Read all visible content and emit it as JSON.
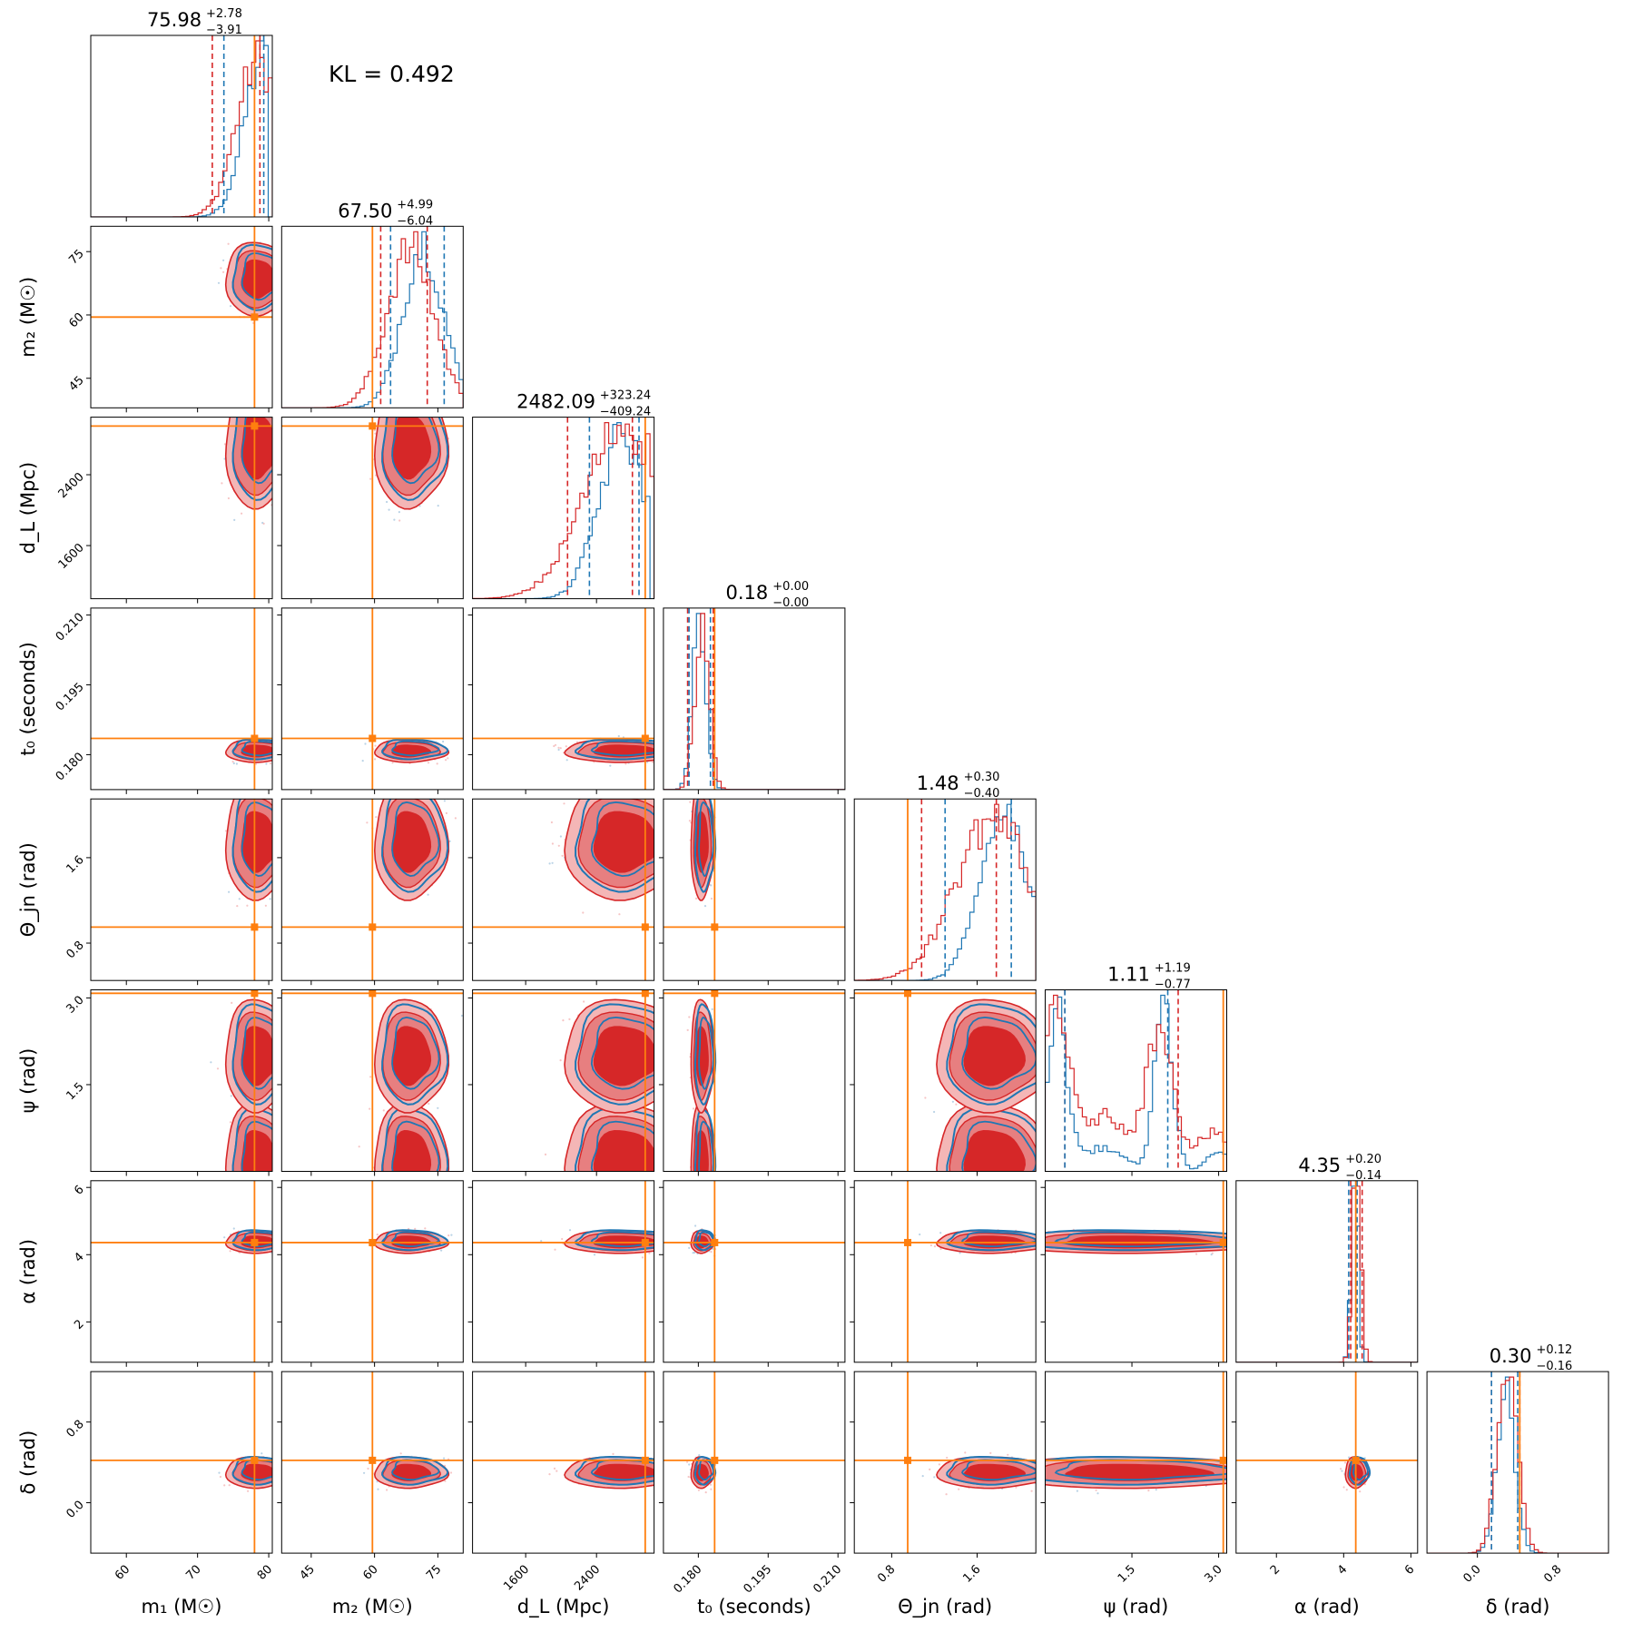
{
  "kl_label": "KL = 0.492",
  "colors": {
    "red": "#d62728",
    "red_light": "#f4b6b6",
    "red_mid": "#e77f80",
    "blue": "#1f77b4",
    "orange": "#ff7f0e"
  },
  "chart_data": {
    "type": "corner",
    "kl": 0.492,
    "series": [
      {
        "name": "",
        "color": "red",
        "style": "filled contours + step histogram"
      },
      {
        "name": "",
        "color": "blue",
        "style": "contour lines + step histogram"
      }
    ],
    "params": [
      {
        "key": "m1",
        "label": "m₁ (M☉)",
        "short": "m₁",
        "unit": "(M☉)",
        "range": [
          55,
          80.5
        ],
        "ticks": [
          60,
          70,
          80
        ],
        "tick_labels": [
          "60",
          "70",
          "80"
        ],
        "median": 75.98,
        "plus": "+2.78",
        "minus": "−3.91",
        "title_value": "75.98",
        "truth": 78.0,
        "red_q": [
          72.07,
          78.76
        ],
        "blue_q": [
          73.7,
          79.3
        ],
        "red_mode": 78.5,
        "red_sd": 3.0,
        "blue_mode": 79.2,
        "blue_sd": 2.6,
        "blue_cut": 80
      },
      {
        "key": "m2",
        "label": "m₂ (M☉)",
        "short": "m₂",
        "unit": "(M☉)",
        "range": [
          38,
          81
        ],
        "ticks": [
          45,
          60,
          75
        ],
        "tick_labels": [
          "45",
          "60",
          "75"
        ],
        "median": 67.5,
        "plus": "+4.99",
        "minus": "−6.04",
        "title_value": "67.50",
        "truth": 59.5,
        "red_q": [
          61.46,
          72.49
        ],
        "blue_q": [
          63.8,
          76.5
        ],
        "red_mode": 68.5,
        "red_sd": 5.6,
        "blue_mode": 71.5,
        "blue_sd": 4.8
      },
      {
        "key": "dL",
        "label": "d_L (Mpc)",
        "short": "d",
        "unit": "(Mpc)",
        "range": [
          1000,
          3050
        ],
        "ticks": [
          1600,
          2400
        ],
        "tick_labels": [
          "1600",
          "2400"
        ],
        "median": 2482.09,
        "plus": "+323.24",
        "minus": "−409.24",
        "title_value": "2482.09",
        "truth": 2950,
        "red_q": [
          2072.85,
          2805.33
        ],
        "blue_q": [
          2320,
          2880
        ],
        "red_mode": 2720,
        "red_sd": 450,
        "blue_mode": 2700,
        "blue_sd": 270,
        "blue_cut": 3010
      },
      {
        "key": "t0",
        "label": "t₀ (seconds)",
        "short": "t₀",
        "unit": "(seconds)",
        "range": [
          0.1725,
          0.2115
        ],
        "ticks": [
          0.18,
          0.195,
          0.21
        ],
        "tick_labels": [
          "0.180",
          "0.195",
          "0.210"
        ],
        "median": 0.18,
        "plus": "+0.00",
        "minus": "−0.00",
        "title_value": "0.18",
        "truth": 0.1835,
        "red_q": [
          0.1777,
          0.1832
        ],
        "blue_q": [
          0.178,
          0.1826
        ],
        "red_mode": 0.1808,
        "red_sd": 0.0015,
        "blue_mode": 0.1802,
        "blue_sd": 0.0014
      },
      {
        "key": "theta_jn",
        "label": "Θ_jn (rad)",
        "short": "Θ",
        "unit": "(rad)",
        "range": [
          0.45,
          2.15
        ],
        "ticks": [
          0.8,
          1.6
        ],
        "tick_labels": [
          "0.8",
          "1.6"
        ],
        "median": 1.48,
        "plus": "+0.30",
        "minus": "−0.40",
        "title_value": "1.48",
        "truth": 0.95,
        "red_q": [
          1.08,
          1.78
        ],
        "blue_q": [
          1.3,
          1.92
        ],
        "red_mode": 1.75,
        "red_sd": 0.35,
        "blue_mode": 1.85,
        "blue_sd": 0.22
      },
      {
        "key": "psi",
        "label": "ψ (rad)",
        "short": "ψ",
        "unit": "(rad)",
        "range": [
          0.0,
          3.14
        ],
        "ticks": [
          1.5,
          3.0
        ],
        "tick_labels": [
          "1.5",
          "3.0"
        ],
        "median": 1.11,
        "plus": "+1.19",
        "minus": "−0.77",
        "title_value": "1.11",
        "truth": 3.08,
        "red_q": [
          0.34,
          2.3
        ],
        "blue_q": [
          0.34,
          2.12
        ],
        "bimodal": true
      },
      {
        "key": "alpha",
        "label": "α (rad)",
        "short": "α",
        "unit": "(rad)",
        "range": [
          0.8,
          6.2
        ],
        "ticks": [
          2,
          4,
          6
        ],
        "tick_labels": [
          "2",
          "4",
          "6"
        ],
        "median": 4.35,
        "plus": "+0.20",
        "minus": "−0.14",
        "title_value": "4.35",
        "truth": 4.36,
        "red_q": [
          4.21,
          4.55
        ],
        "blue_q": [
          4.15,
          4.4
        ],
        "red_mode": 4.38,
        "red_sd": 0.12,
        "blue_mode": 4.32,
        "blue_sd": 0.1
      },
      {
        "key": "delta",
        "label": "δ (rad)",
        "short": "δ",
        "unit": "(rad)",
        "range": [
          -0.5,
          1.3
        ],
        "ticks": [
          0.0,
          0.8
        ],
        "tick_labels": [
          "0.0",
          "0.8"
        ],
        "median": 0.3,
        "plus": "+0.12",
        "minus": "−0.16",
        "title_value": "0.30",
        "truth": 0.42,
        "red_q": [
          0.14,
          0.42
        ],
        "blue_q": [
          0.14,
          0.4
        ],
        "red_mode": 0.3,
        "red_sd": 0.1,
        "blue_mode": 0.28,
        "blue_sd": 0.09
      }
    ]
  }
}
